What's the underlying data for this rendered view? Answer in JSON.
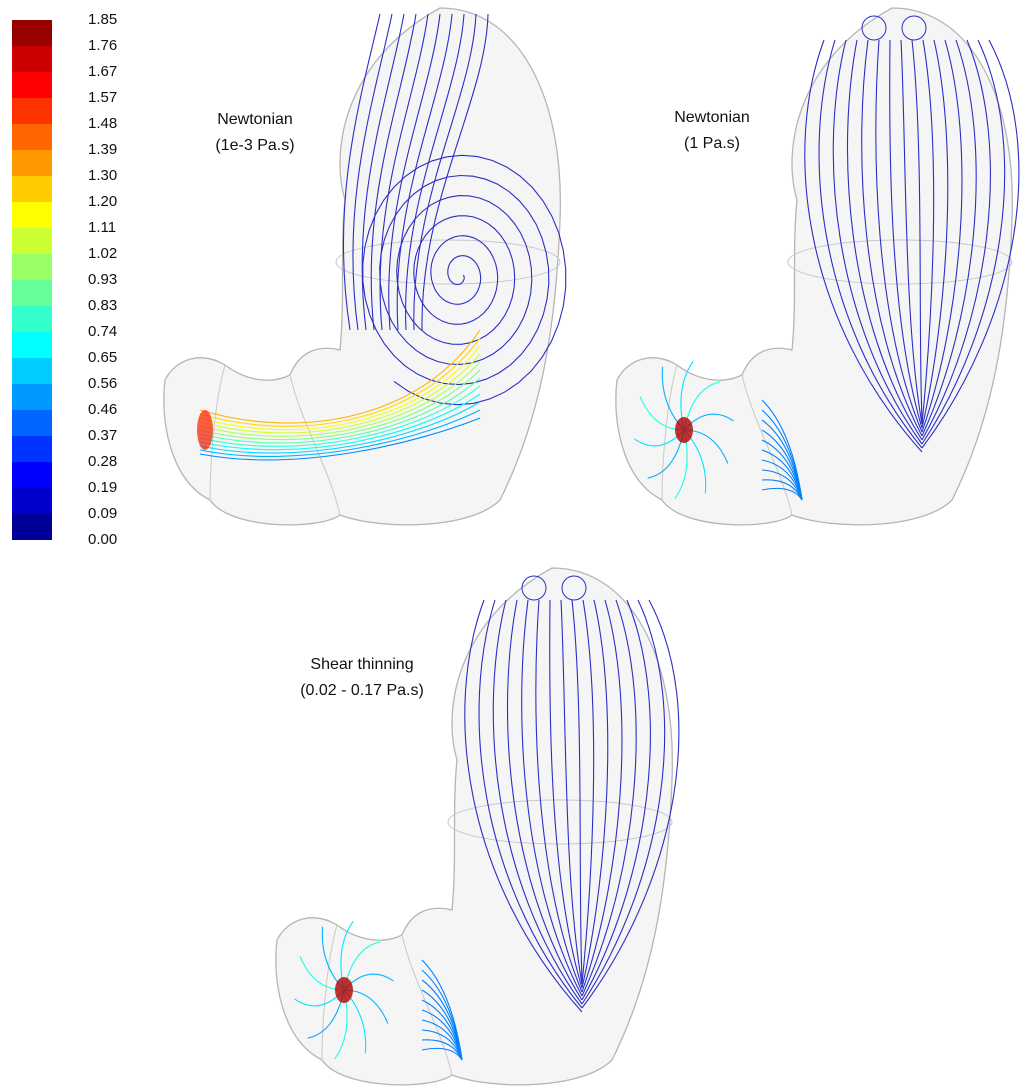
{
  "colorbar": {
    "ticks": [
      "1.85",
      "1.76",
      "1.67",
      "1.57",
      "1.48",
      "1.39",
      "1.30",
      "1.20",
      "1.11",
      "1.02",
      "0.93",
      "0.83",
      "0.74",
      "0.65",
      "0.56",
      "0.46",
      "0.37",
      "0.28",
      "0.19",
      "0.09",
      "0.00"
    ]
  },
  "panels": [
    {
      "title": "Newtonian",
      "subtitle": "(1e-3 Pa.s)"
    },
    {
      "title": "Newtonian",
      "subtitle": "(1 Pa.s)"
    },
    {
      "title": "Shear thinning",
      "subtitle": "(0.02 - 0.17 Pa.s)"
    }
  ]
}
